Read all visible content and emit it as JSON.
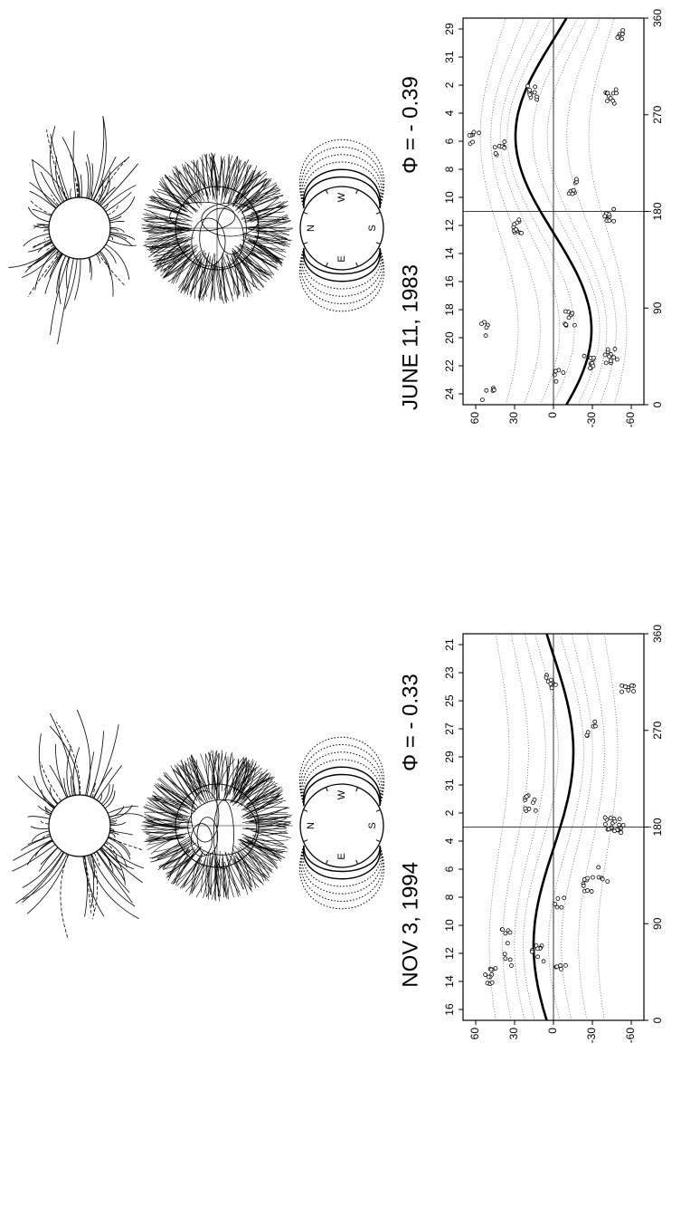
{
  "panels": [
    {
      "date": "JUNE 11, 1983",
      "phi": "Φ = - 0.39",
      "compass": [
        "N",
        "E",
        "S",
        "W"
      ],
      "chart": {
        "top_labels": [
          24,
          22,
          20,
          18,
          16,
          14,
          12,
          10,
          8,
          6,
          4,
          2,
          31,
          29
        ],
        "xticks": [
          0,
          90,
          180,
          270,
          360
        ],
        "yticks": [
          60,
          30,
          0,
          -30,
          -60
        ]
      }
    },
    {
      "date": "NOV 3, 1994",
      "phi": "Φ = - 0.33",
      "compass": [
        "N",
        "E",
        "S",
        "W"
      ],
      "chart": {
        "top_labels": [
          16,
          14,
          12,
          10,
          8,
          6,
          4,
          2,
          31,
          29,
          27,
          25,
          23,
          21
        ],
        "xticks": [
          0,
          90,
          180,
          270,
          360
        ],
        "yticks": [
          60,
          30,
          0,
          -30,
          -60
        ]
      }
    }
  ]
}
